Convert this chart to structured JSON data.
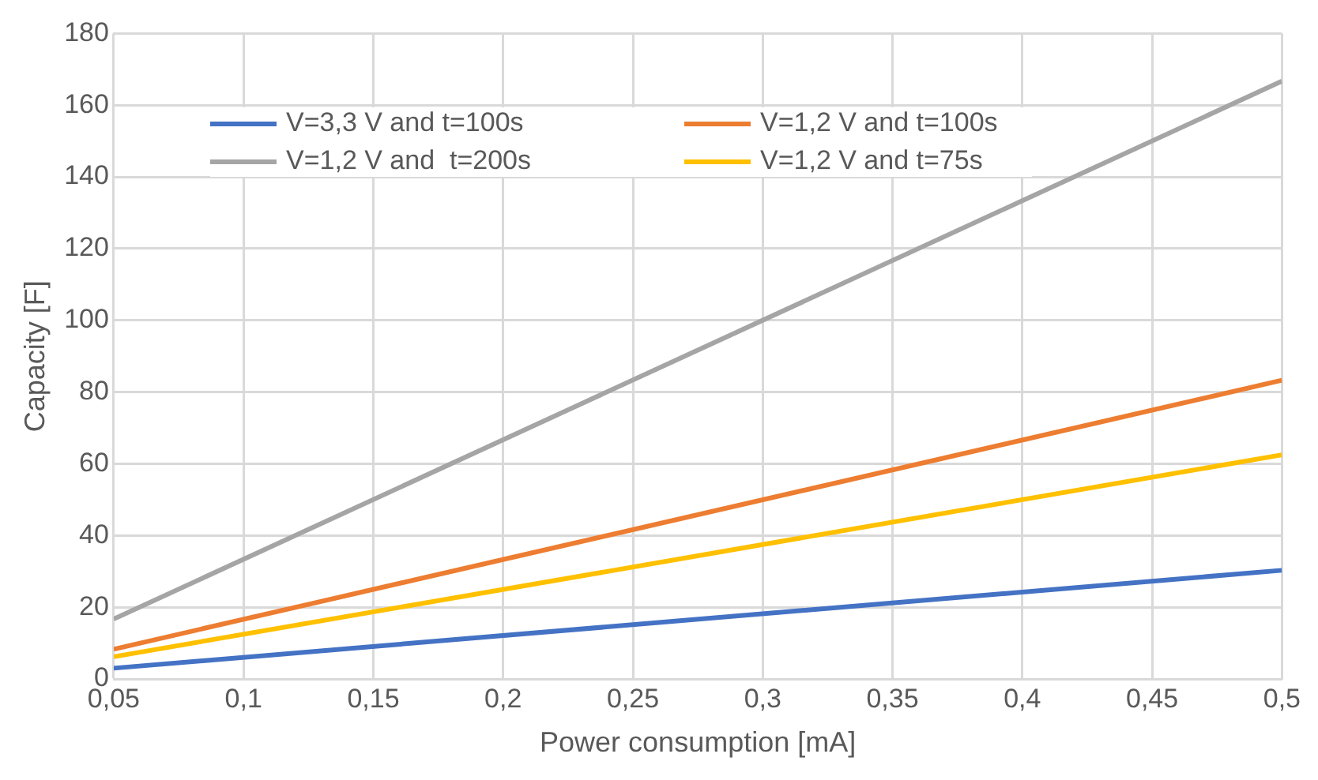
{
  "chart_data": {
    "type": "line",
    "xlabel": "Power consumption [mA]",
    "ylabel": "Capacity [F]",
    "x": [
      0.05,
      0.5
    ],
    "series": [
      {
        "name": "V=3,3 V and t=100s",
        "color": "#4472c4",
        "values": [
          3,
          30.3
        ]
      },
      {
        "name": "V=1,2 V and t=100s",
        "color": "#ed7d31",
        "values": [
          8.3,
          83.3
        ]
      },
      {
        "name": "V=1,2 V and  t=200s",
        "color": "#a5a5a5",
        "values": [
          16.7,
          166.7
        ]
      },
      {
        "name": "V=1,2 V and t=75s",
        "color": "#ffc000",
        "values": [
          6.2,
          62.5
        ]
      }
    ],
    "xlim": [
      0.05,
      0.5
    ],
    "xticks": [
      {
        "value": 0.05,
        "label": "0,05"
      },
      {
        "value": 0.1,
        "label": "0,1"
      },
      {
        "value": 0.15,
        "label": "0,15"
      },
      {
        "value": 0.2,
        "label": "0,2"
      },
      {
        "value": 0.25,
        "label": "0,25"
      },
      {
        "value": 0.3,
        "label": "0,3"
      },
      {
        "value": 0.35,
        "label": "0,35"
      },
      {
        "value": 0.4,
        "label": "0,4"
      },
      {
        "value": 0.45,
        "label": "0,45"
      },
      {
        "value": 0.5,
        "label": "0,5"
      }
    ],
    "ylim": [
      0,
      180
    ],
    "yticks": [
      0,
      20,
      40,
      60,
      80,
      100,
      120,
      140,
      160,
      180
    ],
    "grid": true,
    "legend": "top left",
    "marker": "none",
    "line_style": "solid"
  }
}
